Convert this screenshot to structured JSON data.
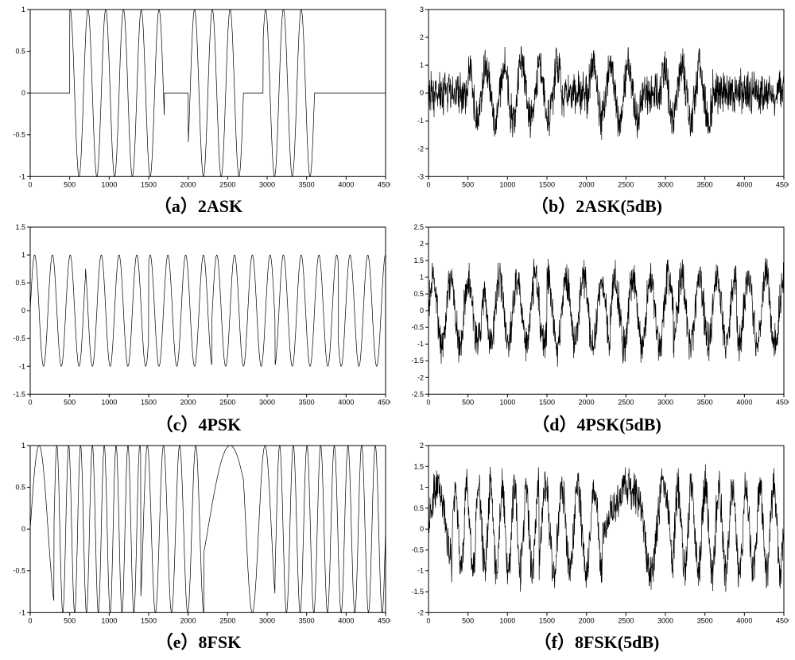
{
  "figure": {
    "cols": 2,
    "rows": 3,
    "background_color": "#ffffff",
    "panel_border_color": "#000000",
    "signal_color": "#000000",
    "axis_tick_color": "#000000",
    "axis_label_color": "#000000",
    "axis_fontsize": 9,
    "caption_fontsize": 22,
    "caption_fontweight": "bold",
    "line_width": 0.7
  },
  "panels": [
    {
      "id": "a",
      "caption": "（a）2ASK",
      "type": "line",
      "signal": "2ASK",
      "noise_db": null,
      "xlim": [
        0,
        4500
      ],
      "xtick_step": 500,
      "ylim": [
        -1,
        1
      ],
      "ytick_step": 0.5,
      "segments": [
        {
          "start": 0,
          "end": 500,
          "amp": 0.0,
          "freq": 20
        },
        {
          "start": 500,
          "end": 1700,
          "amp": 1.0,
          "freq": 20
        },
        {
          "start": 1700,
          "end": 2000,
          "amp": 0.0,
          "freq": 20
        },
        {
          "start": 2000,
          "end": 2700,
          "amp": 1.0,
          "freq": 20
        },
        {
          "start": 2700,
          "end": 2950,
          "amp": 0.0,
          "freq": 20
        },
        {
          "start": 2950,
          "end": 3600,
          "amp": 1.0,
          "freq": 20
        },
        {
          "start": 3600,
          "end": 4500,
          "amp": 0.0,
          "freq": 20
        }
      ],
      "noise_amp": 0
    },
    {
      "id": "b",
      "caption": "（b）2ASK(5dB)",
      "type": "line",
      "signal": "2ASK",
      "noise_db": 5,
      "xlim": [
        0,
        4500
      ],
      "xtick_step": 500,
      "ylim": [
        -3,
        3
      ],
      "ytick_step": 1,
      "segments": [
        {
          "start": 0,
          "end": 500,
          "amp": 0.0,
          "freq": 20
        },
        {
          "start": 500,
          "end": 1700,
          "amp": 1.0,
          "freq": 20
        },
        {
          "start": 1700,
          "end": 2000,
          "amp": 0.0,
          "freq": 20
        },
        {
          "start": 2000,
          "end": 2700,
          "amp": 1.0,
          "freq": 20
        },
        {
          "start": 2700,
          "end": 2950,
          "amp": 0.0,
          "freq": 20
        },
        {
          "start": 2950,
          "end": 3600,
          "amp": 1.0,
          "freq": 20
        },
        {
          "start": 3600,
          "end": 4500,
          "amp": 0.0,
          "freq": 20
        }
      ],
      "noise_amp": 0.9
    },
    {
      "id": "c",
      "caption": "（c）4PSK",
      "type": "line",
      "signal": "4PSK",
      "noise_db": null,
      "xlim": [
        0,
        4500
      ],
      "xtick_step": 500,
      "ylim": [
        -1.5,
        1.5
      ],
      "ytick_step": 0.5,
      "segments": [
        {
          "start": 0,
          "end": 700,
          "amp": 1.0,
          "freq": 20,
          "phase": 0
        },
        {
          "start": 700,
          "end": 1500,
          "amp": 1.0,
          "freq": 20,
          "phase": 1.5708
        },
        {
          "start": 1500,
          "end": 2300,
          "amp": 1.0,
          "freq": 20,
          "phase": 3.1416
        },
        {
          "start": 2300,
          "end": 3100,
          "amp": 1.0,
          "freq": 20,
          "phase": 4.7124
        },
        {
          "start": 3100,
          "end": 3900,
          "amp": 1.0,
          "freq": 20,
          "phase": 0
        },
        {
          "start": 3900,
          "end": 4500,
          "amp": 1.0,
          "freq": 20,
          "phase": 1.5708
        }
      ],
      "noise_amp": 0
    },
    {
      "id": "d",
      "caption": "（d）4PSK(5dB)",
      "type": "line",
      "signal": "4PSK",
      "noise_db": 5,
      "xlim": [
        0,
        4500
      ],
      "xtick_step": 500,
      "ylim": [
        -2.5,
        2.5
      ],
      "ytick_step": 0.5,
      "segments": [
        {
          "start": 0,
          "end": 700,
          "amp": 1.0,
          "freq": 20,
          "phase": 0
        },
        {
          "start": 700,
          "end": 1500,
          "amp": 1.0,
          "freq": 20,
          "phase": 1.5708
        },
        {
          "start": 1500,
          "end": 2300,
          "amp": 1.0,
          "freq": 20,
          "phase": 3.1416
        },
        {
          "start": 2300,
          "end": 3100,
          "amp": 1.0,
          "freq": 20,
          "phase": 4.7124
        },
        {
          "start": 3100,
          "end": 3900,
          "amp": 1.0,
          "freq": 20,
          "phase": 0
        },
        {
          "start": 3900,
          "end": 4500,
          "amp": 1.0,
          "freq": 20,
          "phase": 1.5708
        }
      ],
      "noise_amp": 0.7
    },
    {
      "id": "e",
      "caption": "（e）8FSK",
      "type": "line",
      "signal": "8FSK",
      "noise_db": null,
      "xlim": [
        0,
        4500
      ],
      "xtick_step": 500,
      "ylim": [
        -1,
        1
      ],
      "ytick_step": 0.5,
      "segments": [
        {
          "start": 0,
          "end": 300,
          "amp": 1.0,
          "freq": 10
        },
        {
          "start": 300,
          "end": 1400,
          "amp": 1.0,
          "freq": 30
        },
        {
          "start": 1400,
          "end": 2200,
          "amp": 1.0,
          "freq": 22
        },
        {
          "start": 2200,
          "end": 2700,
          "amp": 1.0,
          "freq": 4
        },
        {
          "start": 2700,
          "end": 3100,
          "amp": 1.0,
          "freq": 14
        },
        {
          "start": 3100,
          "end": 4500,
          "amp": 1.0,
          "freq": 26
        }
      ],
      "noise_amp": 0
    },
    {
      "id": "f",
      "caption": "（f）8FSK(5dB)",
      "type": "line",
      "signal": "8FSK",
      "noise_db": 5,
      "xlim": [
        0,
        4500
      ],
      "xtick_step": 500,
      "ylim": [
        -2,
        2
      ],
      "ytick_step": 0.5,
      "segments": [
        {
          "start": 0,
          "end": 300,
          "amp": 1.0,
          "freq": 10
        },
        {
          "start": 300,
          "end": 1400,
          "amp": 1.0,
          "freq": 30
        },
        {
          "start": 1400,
          "end": 2200,
          "amp": 1.0,
          "freq": 22
        },
        {
          "start": 2200,
          "end": 2700,
          "amp": 1.0,
          "freq": 4
        },
        {
          "start": 2700,
          "end": 3100,
          "amp": 1.0,
          "freq": 14
        },
        {
          "start": 3100,
          "end": 4500,
          "amp": 1.0,
          "freq": 26
        }
      ],
      "noise_amp": 0.6
    }
  ]
}
